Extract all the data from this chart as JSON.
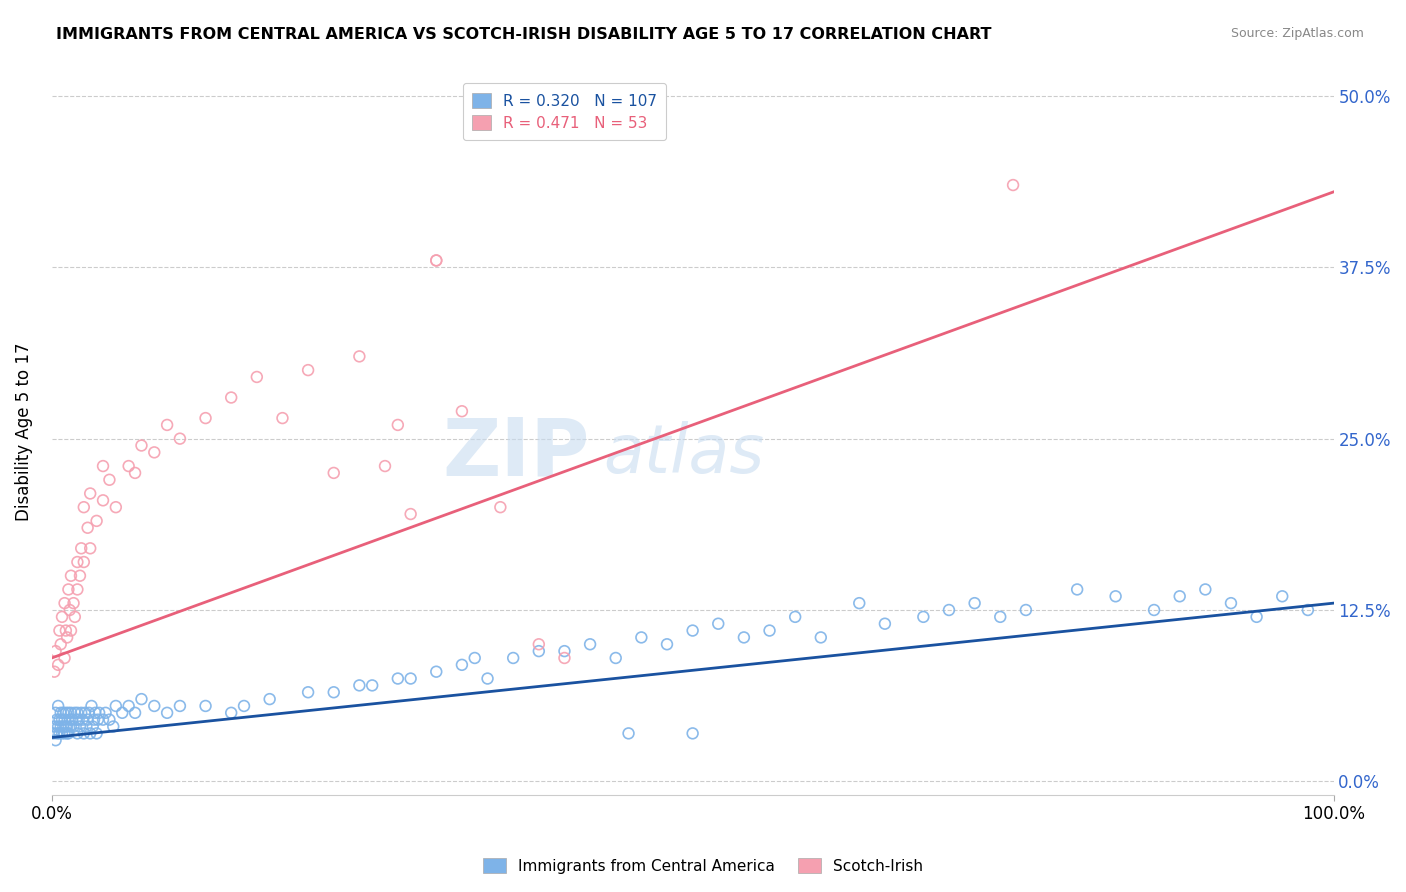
{
  "title": "IMMIGRANTS FROM CENTRAL AMERICA VS SCOTCH-IRISH DISABILITY AGE 5 TO 17 CORRELATION CHART",
  "source": "Source: ZipAtlas.com",
  "ylabel": "Disability Age 5 to 17",
  "ytick_values": [
    0.0,
    12.5,
    25.0,
    37.5,
    50.0
  ],
  "xlim": [
    0,
    100
  ],
  "ylim": [
    -1,
    52
  ],
  "blue_R": 0.32,
  "blue_N": 107,
  "pink_R": 0.471,
  "pink_N": 53,
  "blue_color": "#7EB3E8",
  "pink_color": "#F5A0B0",
  "blue_line_color": "#1A52A0",
  "pink_line_color": "#E8607A",
  "watermark_zip": "ZIP",
  "watermark_atlas": "atlas",
  "blue_line_x0": 0,
  "blue_line_y0": 3.2,
  "blue_line_x1": 100,
  "blue_line_y1": 13.0,
  "pink_line_x0": 0,
  "pink_line_y0": 9.0,
  "pink_line_x1": 100,
  "pink_line_y1": 43.0,
  "grid_color": "#CCCCCC",
  "grid_style": "--",
  "background_color": "#FFFFFF",
  "legend_label_blue": "Immigrants from Central America",
  "legend_label_pink": "Scotch-Irish",
  "blue_x": [
    0.1,
    0.2,
    0.3,
    0.3,
    0.4,
    0.4,
    0.5,
    0.5,
    0.6,
    0.6,
    0.7,
    0.7,
    0.8,
    0.8,
    0.9,
    0.9,
    1.0,
    1.0,
    1.1,
    1.1,
    1.2,
    1.2,
    1.3,
    1.3,
    1.4,
    1.5,
    1.5,
    1.6,
    1.7,
    1.8,
    1.9,
    2.0,
    2.0,
    2.1,
    2.2,
    2.3,
    2.4,
    2.5,
    2.6,
    2.7,
    2.8,
    2.9,
    3.0,
    3.1,
    3.2,
    3.3,
    3.4,
    3.5,
    3.6,
    3.7,
    4.0,
    4.2,
    4.5,
    4.8,
    5.0,
    5.5,
    6.0,
    6.5,
    7.0,
    8.0,
    9.0,
    10.0,
    12.0,
    14.0,
    15.0,
    17.0,
    20.0,
    22.0,
    24.0,
    25.0,
    27.0,
    28.0,
    30.0,
    32.0,
    33.0,
    34.0,
    36.0,
    38.0,
    40.0,
    42.0,
    44.0,
    46.0,
    48.0,
    50.0,
    52.0,
    54.0,
    56.0,
    58.0,
    60.0,
    63.0,
    65.0,
    68.0,
    70.0,
    72.0,
    74.0,
    76.0,
    80.0,
    83.0,
    86.0,
    88.0,
    90.0,
    92.0,
    94.0,
    96.0,
    98.0,
    50.0,
    45.0
  ],
  "blue_y": [
    3.5,
    4.0,
    3.0,
    5.0,
    4.5,
    3.5,
    4.0,
    5.5,
    3.5,
    4.5,
    4.0,
    5.0,
    3.5,
    4.5,
    4.0,
    5.0,
    3.5,
    4.5,
    4.0,
    5.0,
    3.5,
    4.0,
    5.0,
    3.5,
    4.5,
    4.0,
    5.0,
    4.5,
    4.0,
    5.0,
    4.5,
    3.5,
    5.0,
    4.5,
    4.0,
    5.0,
    4.5,
    3.5,
    5.0,
    4.0,
    4.5,
    5.0,
    3.5,
    5.5,
    4.0,
    4.5,
    5.0,
    3.5,
    4.5,
    5.0,
    4.5,
    5.0,
    4.5,
    4.0,
    5.5,
    5.0,
    5.5,
    5.0,
    6.0,
    5.5,
    5.0,
    5.5,
    5.5,
    5.0,
    5.5,
    6.0,
    6.5,
    6.5,
    7.0,
    7.0,
    7.5,
    7.5,
    8.0,
    8.5,
    9.0,
    7.5,
    9.0,
    9.5,
    9.5,
    10.0,
    9.0,
    10.5,
    10.0,
    11.0,
    11.5,
    10.5,
    11.0,
    12.0,
    10.5,
    13.0,
    11.5,
    12.0,
    12.5,
    13.0,
    12.0,
    12.5,
    14.0,
    13.5,
    12.5,
    13.5,
    14.0,
    13.0,
    12.0,
    13.5,
    12.5,
    3.5,
    3.5
  ],
  "pink_x": [
    0.2,
    0.3,
    0.5,
    0.6,
    0.7,
    0.8,
    1.0,
    1.0,
    1.1,
    1.2,
    1.3,
    1.4,
    1.5,
    1.5,
    1.7,
    1.8,
    2.0,
    2.0,
    2.2,
    2.3,
    2.5,
    2.5,
    2.8,
    3.0,
    3.0,
    3.5,
    4.0,
    4.0,
    4.5,
    5.0,
    6.0,
    6.5,
    7.0,
    8.0,
    9.0,
    10.0,
    12.0,
    14.0,
    16.0,
    18.0,
    20.0,
    22.0,
    24.0,
    26.0,
    27.0,
    28.0,
    30.0,
    32.0,
    35.0,
    38.0,
    40.0,
    75.0,
    30.0
  ],
  "pink_y": [
    8.0,
    9.5,
    8.5,
    11.0,
    10.0,
    12.0,
    9.0,
    13.0,
    11.0,
    10.5,
    14.0,
    12.5,
    11.0,
    15.0,
    13.0,
    12.0,
    14.0,
    16.0,
    15.0,
    17.0,
    16.0,
    20.0,
    18.5,
    17.0,
    21.0,
    19.0,
    20.5,
    23.0,
    22.0,
    20.0,
    23.0,
    22.5,
    24.5,
    24.0,
    26.0,
    25.0,
    26.5,
    28.0,
    29.5,
    26.5,
    30.0,
    22.5,
    31.0,
    23.0,
    26.0,
    19.5,
    38.0,
    27.0,
    20.0,
    10.0,
    9.0,
    43.5,
    38.0
  ]
}
